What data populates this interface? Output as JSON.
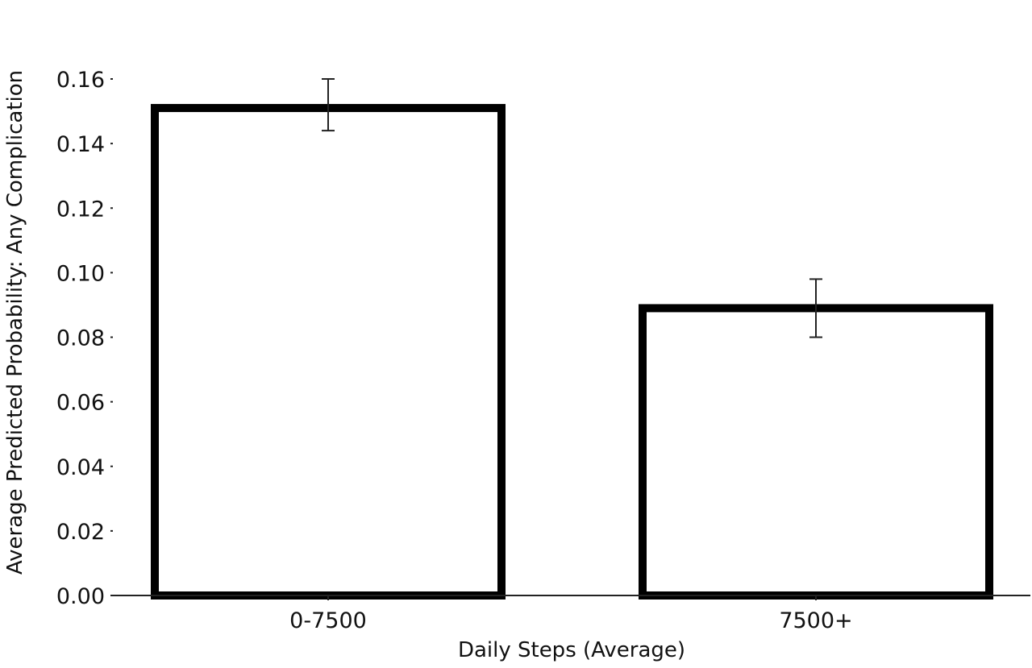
{
  "chart_data": {
    "type": "bar",
    "title": "",
    "xlabel": "Daily Steps (Average)",
    "ylabel": "Average Predicted Probability: Any Complication",
    "categories": [
      "0-7500",
      "7500+"
    ],
    "values": [
      0.151,
      0.089
    ],
    "error_low": [
      0.144,
      0.08
    ],
    "error_high": [
      0.16,
      0.098
    ],
    "ylim": [
      0,
      0.17
    ],
    "yticks": [
      0.0,
      0.02,
      0.04,
      0.06,
      0.08,
      0.1,
      0.12,
      0.14,
      0.16
    ],
    "ytick_labels": [
      "0.00",
      "0.02",
      "0.04",
      "0.06",
      "0.08",
      "0.10",
      "0.12",
      "0.14",
      "0.16"
    ],
    "grid": false,
    "legend": "none",
    "colors": {
      "bar_fill": "#ffffff",
      "bar_edge": "#000000",
      "errorbar": "#222222",
      "axis": "#222222"
    }
  }
}
